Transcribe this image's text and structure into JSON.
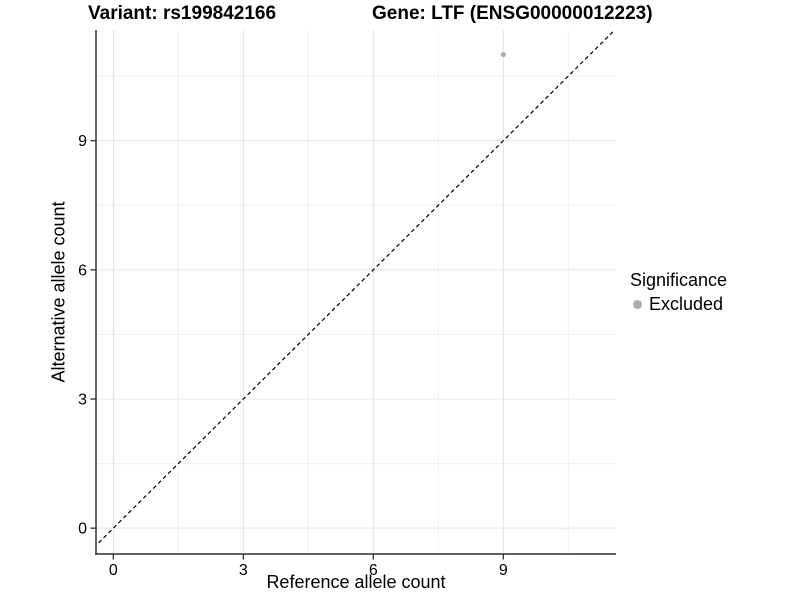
{
  "chart_data": {
    "type": "scatter",
    "titles": {
      "variant": "Variant: rs199842166",
      "gene": "Gene: LTF (ENSG00000012223)"
    },
    "xlabel": "Reference allele count",
    "ylabel": "Alternative allele count",
    "xlim": [
      -0.4,
      11.6
    ],
    "ylim": [
      -0.6,
      11.57
    ],
    "x_ticks": [
      0,
      3,
      6,
      9
    ],
    "y_ticks": [
      0,
      3,
      6,
      9
    ],
    "x_minor_ticks": [
      1.5,
      4.5,
      7.5,
      10.5
    ],
    "y_minor_ticks": [
      1.5,
      4.5,
      7.5,
      10.5
    ],
    "grid": "major+minor",
    "series": [
      {
        "name": "Excluded",
        "color": "#adadad",
        "marker": "circle",
        "points": [
          {
            "x": 9,
            "y": 11
          }
        ]
      }
    ],
    "reference_line": {
      "kind": "identity y=x",
      "style": "dashed",
      "color": "#000000"
    },
    "legend": {
      "title": "Significance",
      "position": "right-center",
      "items": [
        {
          "label": "Excluded",
          "color": "#adadad",
          "marker": "circle"
        }
      ]
    }
  },
  "style": {
    "background": "#ffffff",
    "grid_major_color": "#e4e4e4",
    "grid_minor_color": "#f0f0f0",
    "axis_line_color": "#4a4a4a",
    "tick_color": "#3a3a3a",
    "text_color": "#000000"
  }
}
